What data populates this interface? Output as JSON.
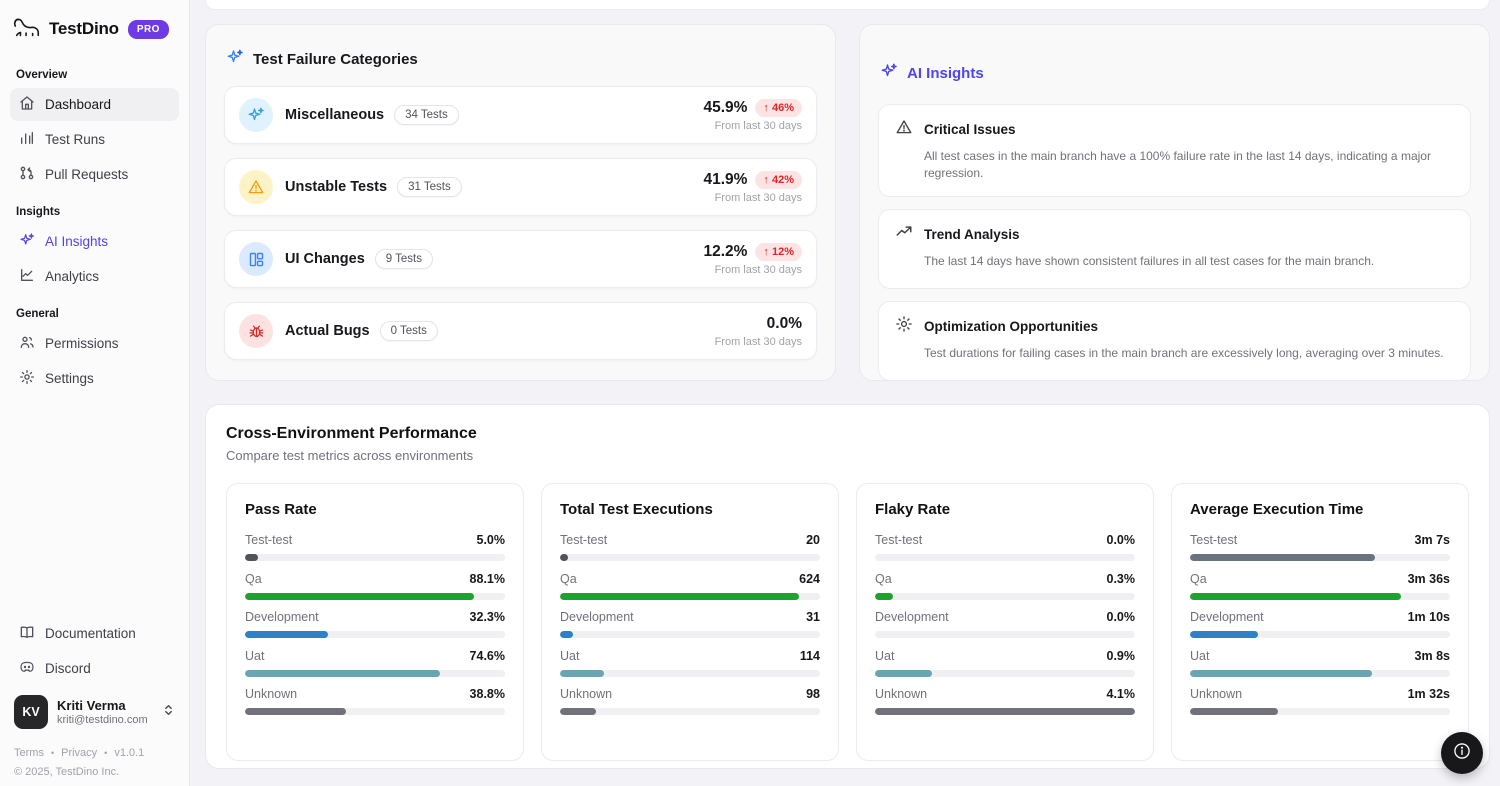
{
  "sidebar": {
    "brand": {
      "name": "TestDino",
      "badge": "PRO"
    },
    "sections": [
      {
        "label": "Overview",
        "items": [
          {
            "icon": "home-icon",
            "label": "Dashboard"
          },
          {
            "icon": "bar-chart-icon",
            "label": "Test Runs"
          },
          {
            "icon": "pull-request-icon",
            "label": "Pull Requests"
          }
        ]
      },
      {
        "label": "Insights",
        "items": [
          {
            "icon": "sparkles-icon",
            "label": "AI Insights"
          },
          {
            "icon": "line-chart-icon",
            "label": "Analytics"
          }
        ]
      },
      {
        "label": "General",
        "items": [
          {
            "icon": "users-icon",
            "label": "Permissions"
          },
          {
            "icon": "gear-icon",
            "label": "Settings"
          }
        ]
      }
    ],
    "footer_links": [
      {
        "icon": "book-icon",
        "label": "Documentation"
      },
      {
        "icon": "discord-icon",
        "label": "Discord"
      }
    ],
    "user": {
      "initials": "KV",
      "name": "Kriti Verma",
      "email": "kriti@testdino.com"
    },
    "legal": {
      "terms": "Terms",
      "privacy": "Privacy",
      "version": "v1.0.1",
      "copyright": "© 2025, TestDino Inc."
    }
  },
  "failure_categories": {
    "title": "Test Failure Categories",
    "rows": [
      {
        "icon": "sparkles-icon",
        "name": "Miscellaneous",
        "count": "34 Tests",
        "value": "45.9%",
        "trend": "↑ 46%",
        "period": "From last 30 days"
      },
      {
        "icon": "warning-triangle-icon",
        "name": "Unstable Tests",
        "count": "31 Tests",
        "value": "41.9%",
        "trend": "↑ 42%",
        "period": "From last 30 days"
      },
      {
        "icon": "layout-icon",
        "name": "UI Changes",
        "count": "9 Tests",
        "value": "12.2%",
        "trend": "↑ 12%",
        "period": "From last 30 days"
      },
      {
        "icon": "bug-icon",
        "name": "Actual Bugs",
        "count": "0 Tests",
        "value": "0.0%",
        "trend": "",
        "period": "From last 30 days"
      }
    ]
  },
  "ai_insights": {
    "title": "AI Insights",
    "items": [
      {
        "icon": "warning-triangle-icon",
        "title": "Critical Issues",
        "description": "All test cases in the main branch have a 100% failure rate in the last 14 days, indicating a major regression."
      },
      {
        "icon": "trend-up-icon",
        "title": "Trend Analysis",
        "description": "The last 14 days have shown consistent failures in all test cases for the main branch."
      },
      {
        "icon": "gear-icon",
        "title": "Optimization Opportunities",
        "description": "Test durations for failing cases in the main branch are excessively long, averaging over 3 minutes."
      }
    ]
  },
  "cross_env": {
    "title": "Cross-Environment Performance",
    "subtitle": "Compare test metrics across environments",
    "cards": [
      {
        "title": "Pass Rate",
        "rows": [
          {
            "label": "Test-test",
            "value": "5.0%",
            "bar": {
              "pct": 5,
              "color": "#52525b"
            }
          },
          {
            "label": "Qa",
            "value": "88.1%",
            "bar": {
              "pct": 88,
              "color": "#1fa12f"
            }
          },
          {
            "label": "Development",
            "value": "32.3%",
            "bar": {
              "pct": 32,
              "color": "#2e80c7"
            }
          },
          {
            "label": "Uat",
            "value": "74.6%",
            "bar": {
              "pct": 75,
              "color": "#68a6b4"
            }
          },
          {
            "label": "Unknown",
            "value": "38.8%",
            "bar": {
              "pct": 39,
              "color": "#71717a"
            }
          }
        ]
      },
      {
        "title": "Total Test Executions",
        "rows": [
          {
            "label": "Test-test",
            "value": "20",
            "bar": {
              "pct": 3,
              "color": "#52525b"
            }
          },
          {
            "label": "Qa",
            "value": "624",
            "bar": {
              "pct": 92,
              "color": "#1fa12f"
            }
          },
          {
            "label": "Development",
            "value": "31",
            "bar": {
              "pct": 5,
              "color": "#2e80c7"
            }
          },
          {
            "label": "Uat",
            "value": "114",
            "bar": {
              "pct": 17,
              "color": "#68a6b4"
            }
          },
          {
            "label": "Unknown",
            "value": "98",
            "bar": {
              "pct": 14,
              "color": "#71717a"
            }
          }
        ]
      },
      {
        "title": "Flaky Rate",
        "rows": [
          {
            "label": "Test-test",
            "value": "0.0%",
            "bar": {
              "pct": 0,
              "color": "#52525b"
            }
          },
          {
            "label": "Qa",
            "value": "0.3%",
            "bar": {
              "pct": 7,
              "color": "#1fa12f"
            }
          },
          {
            "label": "Development",
            "value": "0.0%",
            "bar": {
              "pct": 0,
              "color": "#2e80c7"
            }
          },
          {
            "label": "Uat",
            "value": "0.9%",
            "bar": {
              "pct": 22,
              "color": "#68a6b4"
            }
          },
          {
            "label": "Unknown",
            "value": "4.1%",
            "bar": {
              "pct": 100,
              "color": "#71717a"
            }
          }
        ]
      },
      {
        "title": "Average Execution Time",
        "rows": [
          {
            "label": "Test-test",
            "value": "3m 7s",
            "bar": {
              "pct": 71,
              "color": "#6b7280"
            }
          },
          {
            "label": "Qa",
            "value": "3m 36s",
            "bar": {
              "pct": 81,
              "color": "#1fa12f"
            }
          },
          {
            "label": "Development",
            "value": "1m 10s",
            "bar": {
              "pct": 26,
              "color": "#2e80c7"
            }
          },
          {
            "label": "Uat",
            "value": "3m 8s",
            "bar": {
              "pct": 70,
              "color": "#68a6b4"
            }
          },
          {
            "label": "Unknown",
            "value": "1m 32s",
            "bar": {
              "pct": 34,
              "color": "#71717a"
            }
          }
        ]
      }
    ]
  },
  "colors": {
    "accent_indigo": "#4f46e5",
    "pro_purple": "#6d3ae3",
    "trend_red": "#dc2626",
    "trend_bg": "#fde4e4",
    "green": "#1fa12f",
    "blue": "#2e80c7",
    "teal": "#68a6b4",
    "gray": "#71717a"
  },
  "floating_button": {
    "icon": "info-icon"
  }
}
